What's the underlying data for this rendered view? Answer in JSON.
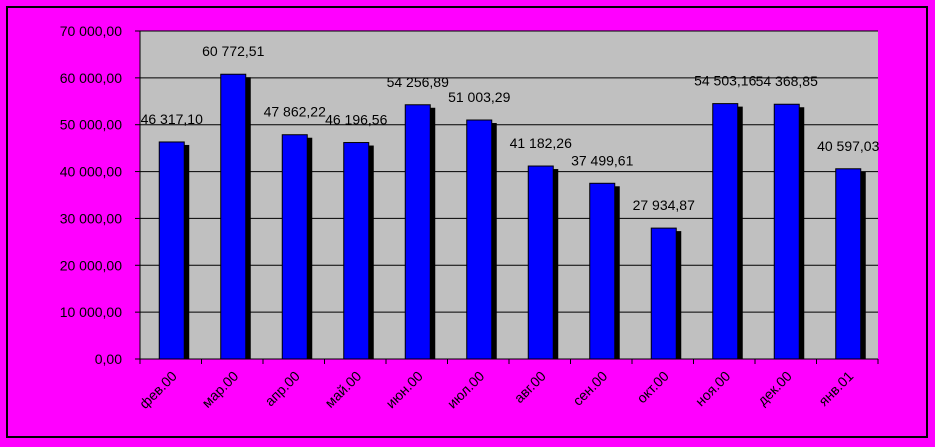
{
  "chart_data": {
    "type": "bar",
    "title": "",
    "xlabel": "",
    "ylabel": "",
    "ylim": [
      0,
      70000
    ],
    "yticks": [
      "0,00",
      "10 000,00",
      "20 000,00",
      "30 000,00",
      "40 000,00",
      "50 000,00",
      "60 000,00",
      "70 000,00"
    ],
    "ytick_values": [
      0,
      10000,
      20000,
      30000,
      40000,
      50000,
      60000,
      70000
    ],
    "grid": true,
    "categories": [
      "фев.00",
      "мар.00",
      "апр.00",
      "май.00",
      "июн.00",
      "июл.00",
      "авг.00",
      "сен.00",
      "окт.00",
      "ноя.00",
      "дек.00",
      "янв.01"
    ],
    "values": [
      46317.1,
      60772.51,
      47862.22,
      46196.56,
      54256.89,
      51003.29,
      41182.26,
      37499.61,
      27934.87,
      54503.16,
      54368.85,
      40597.03
    ],
    "data_labels": [
      "46 317,10",
      "60 772,51",
      "47 862,22",
      "46 196,56",
      "54 256,89",
      "51 003,29",
      "41 182,26",
      "37 499,61",
      "27 934,87",
      "54 503,16",
      "54 368,85",
      "40 597,03"
    ],
    "colors": {
      "background": "#ff00ff",
      "plot_area": "#c0c0c0",
      "bar": "#0000ff",
      "bar_shadow": "#000000",
      "gridline": "#000000"
    }
  }
}
